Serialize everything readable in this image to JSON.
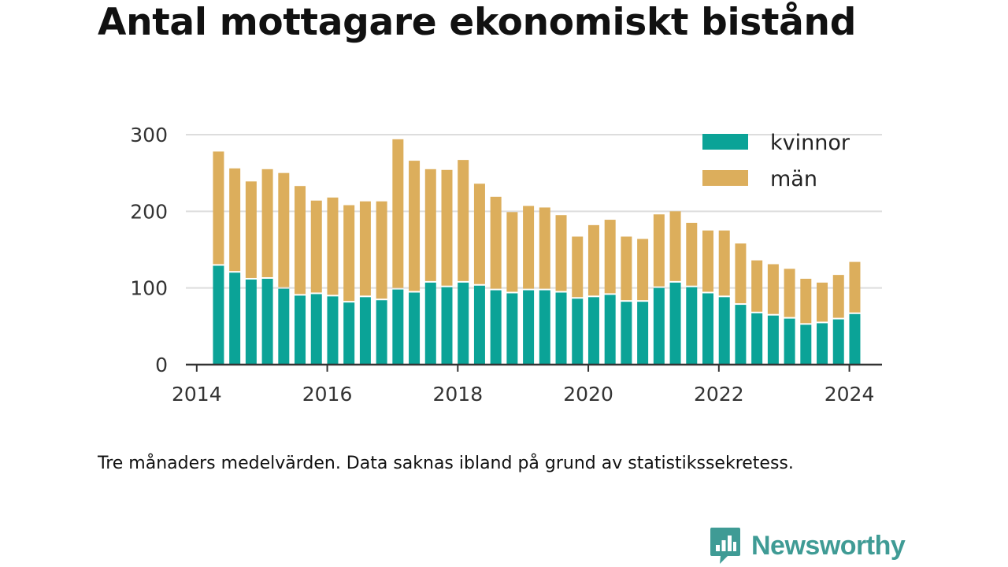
{
  "title": "Antal mottagare ekonomiskt bistånd",
  "footnote": "Tre månaders medelvärden. Data saknas ibland på grund av statistikssekretess.",
  "brand": {
    "name": "Newsworthy",
    "logo_icon": "bar-chart-speech-bubble-icon",
    "color": "#3f9b95"
  },
  "colors": {
    "kvinnor": "#0ba397",
    "man": "#dcae5c",
    "grid": "#dddddd",
    "axis": "#333333"
  },
  "chart_data": {
    "type": "bar",
    "stacked": true,
    "x_ticks": [
      "2014",
      "2016",
      "2018",
      "2020",
      "2022",
      "2024"
    ],
    "y_ticks": [
      "0",
      "100",
      "200",
      "300"
    ],
    "ylim": [
      0,
      300
    ],
    "xlim": [
      "2013-11",
      "2024-07"
    ],
    "grid": true,
    "legend": "top-right",
    "x": [
      "2014-05",
      "2014-08",
      "2014-11",
      "2015-02",
      "2015-05",
      "2015-08",
      "2015-11",
      "2016-02",
      "2016-05",
      "2016-08",
      "2016-11",
      "2017-02",
      "2017-05",
      "2017-08",
      "2017-11",
      "2018-02",
      "2018-05",
      "2018-08",
      "2018-11",
      "2019-02",
      "2019-05",
      "2019-08",
      "2019-11",
      "2020-02",
      "2020-05",
      "2020-08",
      "2020-11",
      "2021-02",
      "2021-05",
      "2021-08",
      "2021-11",
      "2022-02",
      "2022-05",
      "2022-08",
      "2022-11",
      "2023-02",
      "2023-05",
      "2023-08",
      "2023-11",
      "2024-02"
    ],
    "series": [
      {
        "name": "kvinnor",
        "values": [
          129,
          120,
          111,
          112,
          99,
          90,
          92,
          89,
          81,
          88,
          84,
          98,
          94,
          107,
          101,
          107,
          103,
          97,
          93,
          97,
          97,
          94,
          86,
          88,
          91,
          82,
          82,
          100,
          107,
          101,
          93,
          88,
          78,
          67,
          64,
          60,
          52,
          54,
          59,
          66
        ]
      },
      {
        "name": "män",
        "values": [
          149,
          136,
          128,
          143,
          151,
          143,
          122,
          129,
          127,
          125,
          129,
          196,
          172,
          148,
          153,
          160,
          133,
          122,
          106,
          110,
          108,
          101,
          81,
          94,
          98,
          85,
          82,
          96,
          93,
          84,
          82,
          87,
          80,
          69,
          67,
          65,
          60,
          53,
          58,
          68
        ]
      }
    ]
  }
}
